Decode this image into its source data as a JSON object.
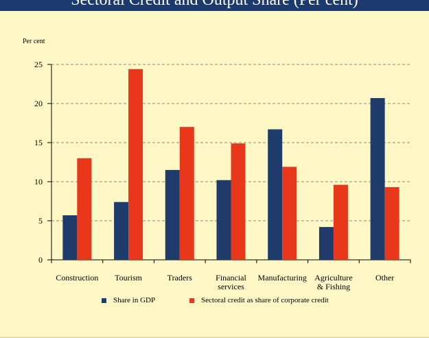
{
  "header": {
    "title": "Sectoral Credit and Output Share (Per cent)"
  },
  "colors": {
    "series1": "#1f3b6b",
    "series2": "#e8371b",
    "grid": "#8a8a8a",
    "background": "#fdf7c6"
  },
  "chart_data": {
    "type": "bar",
    "ylabel": "Per cent",
    "ylim": [
      0,
      25
    ],
    "yticks": [
      0,
      5,
      10,
      15,
      20,
      25
    ],
    "grid": "horizontal dashed",
    "legend_position": "bottom-center",
    "categories": [
      [
        "Construction"
      ],
      [
        "Tourism"
      ],
      [
        "Traders"
      ],
      [
        "Financial",
        "services"
      ],
      [
        "Manufacturing"
      ],
      [
        "Agriculture",
        "& Fishing"
      ],
      [
        "Other"
      ]
    ],
    "series": [
      {
        "name": "Share in GDP",
        "values": [
          5.7,
          7.4,
          11.5,
          10.2,
          16.7,
          4.2,
          20.7
        ]
      },
      {
        "name": "Sectoral credit as share of corporate credit",
        "values": [
          13.0,
          24.4,
          17.0,
          14.9,
          11.9,
          9.6,
          9.3
        ]
      }
    ]
  }
}
